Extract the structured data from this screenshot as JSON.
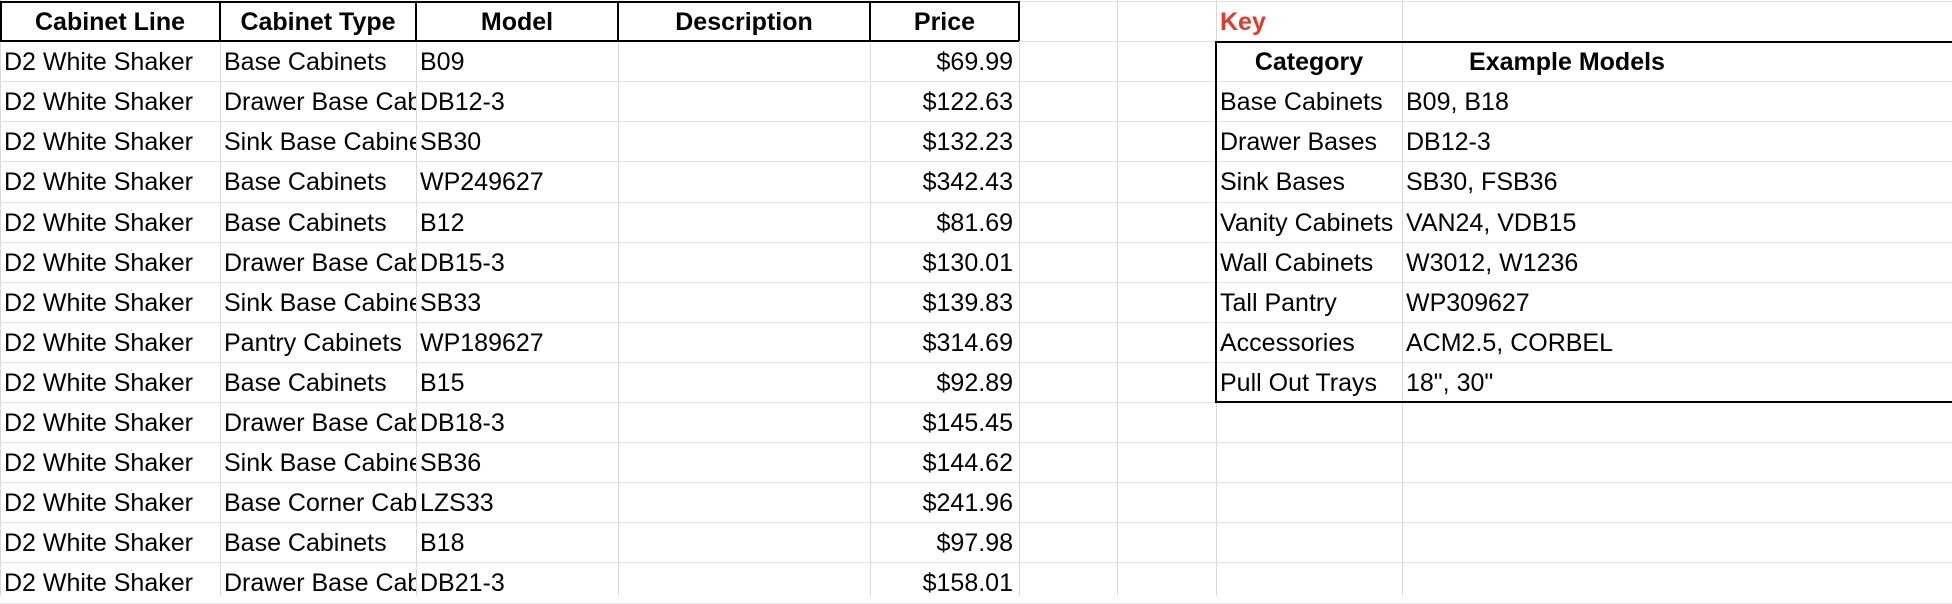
{
  "main_table": {
    "headers": [
      "Cabinet Line",
      "Cabinet Type",
      "Model",
      "Description",
      "Price"
    ],
    "rows": [
      [
        "D2 White Shaker",
        "Base Cabinets",
        "B09",
        "",
        "$69.99"
      ],
      [
        "D2 White Shaker",
        "Drawer Base Cabinets",
        "DB12-3",
        "",
        "$122.63"
      ],
      [
        "D2 White Shaker",
        "Sink Base Cabinets",
        "SB30",
        "",
        "$132.23"
      ],
      [
        "D2 White Shaker",
        "Base Cabinets",
        "WP249627",
        "",
        "$342.43"
      ],
      [
        "D2 White Shaker",
        "Base Cabinets",
        "B12",
        "",
        "$81.69"
      ],
      [
        "D2 White Shaker",
        "Drawer Base Cabinets",
        "DB15-3",
        "",
        "$130.01"
      ],
      [
        "D2 White Shaker",
        "Sink Base Cabinets",
        "SB33",
        "",
        "$139.83"
      ],
      [
        "D2 White Shaker",
        "Pantry Cabinets",
        "WP189627",
        "",
        "$314.69"
      ],
      [
        "D2 White Shaker",
        "Base Cabinets",
        "B15",
        "",
        "$92.89"
      ],
      [
        "D2 White Shaker",
        "Drawer Base Cabinets",
        "DB18-3",
        "",
        "$145.45"
      ],
      [
        "D2 White Shaker",
        "Sink Base Cabinets",
        "SB36",
        "",
        "$144.62"
      ],
      [
        "D2 White Shaker",
        "Base Corner Cabinets",
        "LZS33",
        "",
        "$241.96"
      ],
      [
        "D2 White Shaker",
        "Base Cabinets",
        "B18",
        "",
        "$97.98"
      ],
      [
        "D2 White Shaker",
        "Drawer Base Cabinets",
        "DB21-3",
        "",
        "$158.01"
      ]
    ]
  },
  "key_table": {
    "title": "Key",
    "headers": [
      "Category",
      "Example Models"
    ],
    "rows": [
      [
        "Base Cabinets",
        "B09, B18"
      ],
      [
        "Drawer Bases",
        "DB12-3"
      ],
      [
        "Sink Bases",
        "SB30, FSB36"
      ],
      [
        "Vanity Cabinets",
        "VAN24, VDB15"
      ],
      [
        "Wall Cabinets",
        "W3012, W1236"
      ],
      [
        "Tall Pantry",
        "WP309627"
      ],
      [
        "Accessories",
        "ACM2.5, CORBEL"
      ],
      [
        "Pull Out Trays",
        "18\", 30\""
      ]
    ]
  },
  "colors": {
    "key_title": "#e03a2f",
    "gridline": "#d9d9d9"
  }
}
